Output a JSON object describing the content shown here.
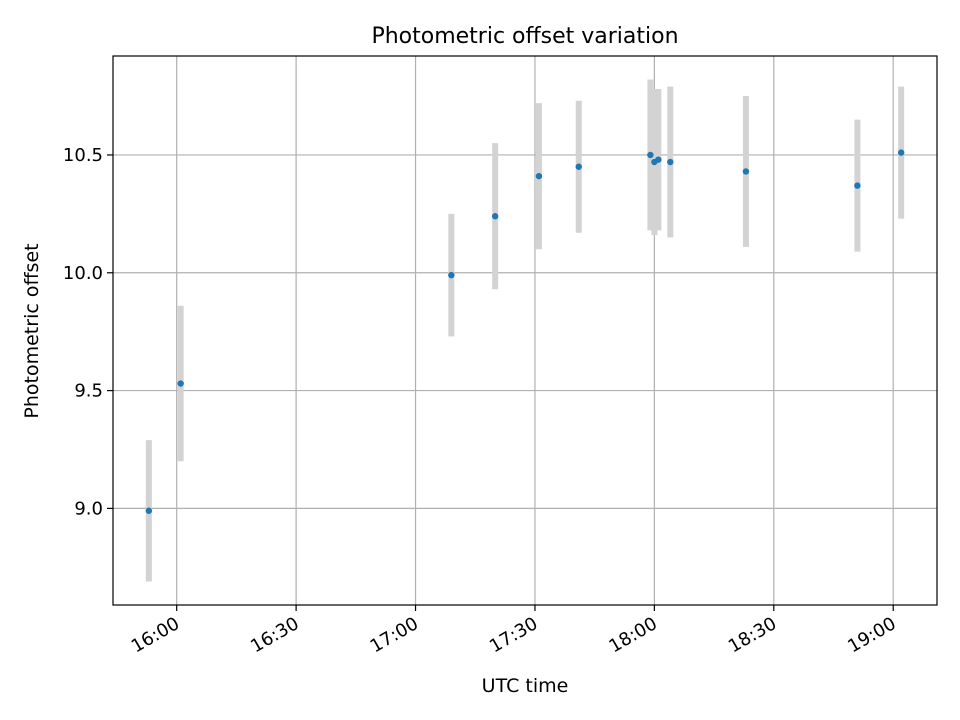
{
  "chart_data": {
    "type": "scatter",
    "title": "Photometric offset variation",
    "xlabel": "UTC time",
    "ylabel": "Photometric offset",
    "x_ticks": [
      "16:00",
      "16:30",
      "17:00",
      "17:30",
      "18:00",
      "18:30",
      "19:00"
    ],
    "y_ticks": [
      "9.0",
      "9.5",
      "10.0",
      "10.5"
    ],
    "xlim": [
      "15:44",
      "19:11"
    ],
    "ylim": [
      8.59,
      10.92
    ],
    "grid": true,
    "colors": {
      "point": "#1f77b4",
      "errorbar": "#d3d3d3",
      "grid": "#b0b0b0",
      "axes": "#000000"
    },
    "series": [
      {
        "x": [
          "15:53",
          "16:01",
          "17:09",
          "17:20",
          "17:31",
          "17:41",
          "17:59",
          "18:00",
          "18:01",
          "18:04",
          "18:23",
          "18:51",
          "19:02"
        ],
        "y": [
          8.99,
          9.53,
          9.99,
          10.24,
          10.41,
          10.45,
          10.5,
          10.47,
          10.48,
          10.47,
          10.43,
          10.37,
          10.51
        ],
        "yerr": [
          0.3,
          0.33,
          0.26,
          0.31,
          0.31,
          0.28,
          0.32,
          0.31,
          0.3,
          0.32,
          0.32,
          0.28,
          0.28
        ]
      }
    ]
  }
}
